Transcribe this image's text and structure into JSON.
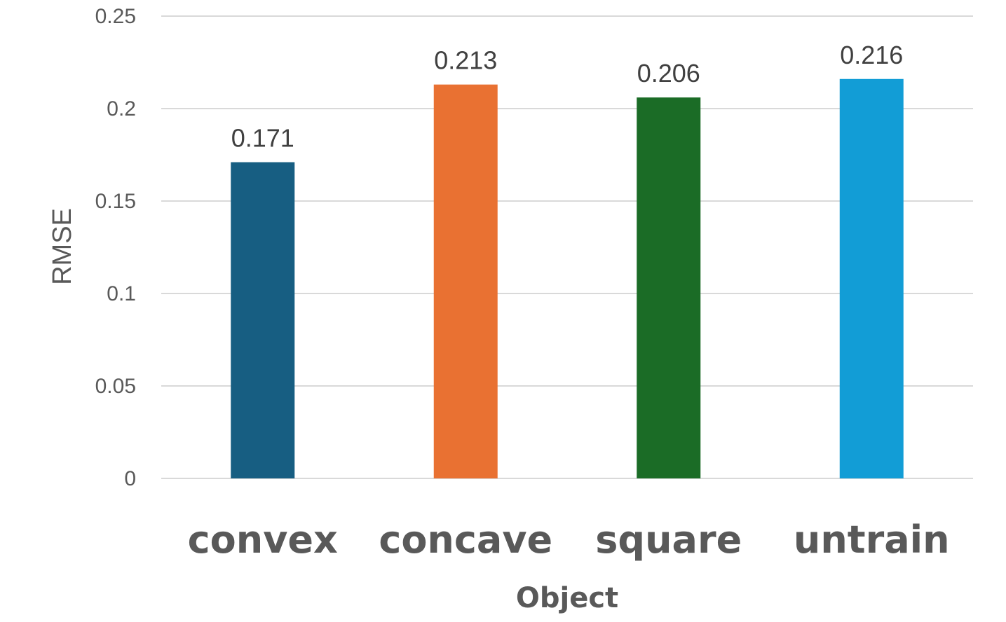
{
  "chart_data": {
    "type": "bar",
    "title": "",
    "xlabel": "Object",
    "ylabel": "RMSE",
    "categories": [
      "convex",
      "concave",
      "square",
      "untrain"
    ],
    "values": [
      0.171,
      0.213,
      0.206,
      0.216
    ],
    "data_labels": [
      "0.171",
      "0.213",
      "0.206",
      "0.216"
    ],
    "colors": [
      "#175e82",
      "#e97132",
      "#1b6c26",
      "#129dd6"
    ],
    "ylim": [
      0,
      0.25
    ],
    "yticks": [
      0,
      0.05,
      0.1,
      0.15,
      0.2,
      0.25
    ],
    "ytick_labels": [
      "0",
      "0.05",
      "0.1",
      "0.15",
      "0.2",
      "0.25"
    ],
    "grid": true,
    "legend": "none"
  }
}
